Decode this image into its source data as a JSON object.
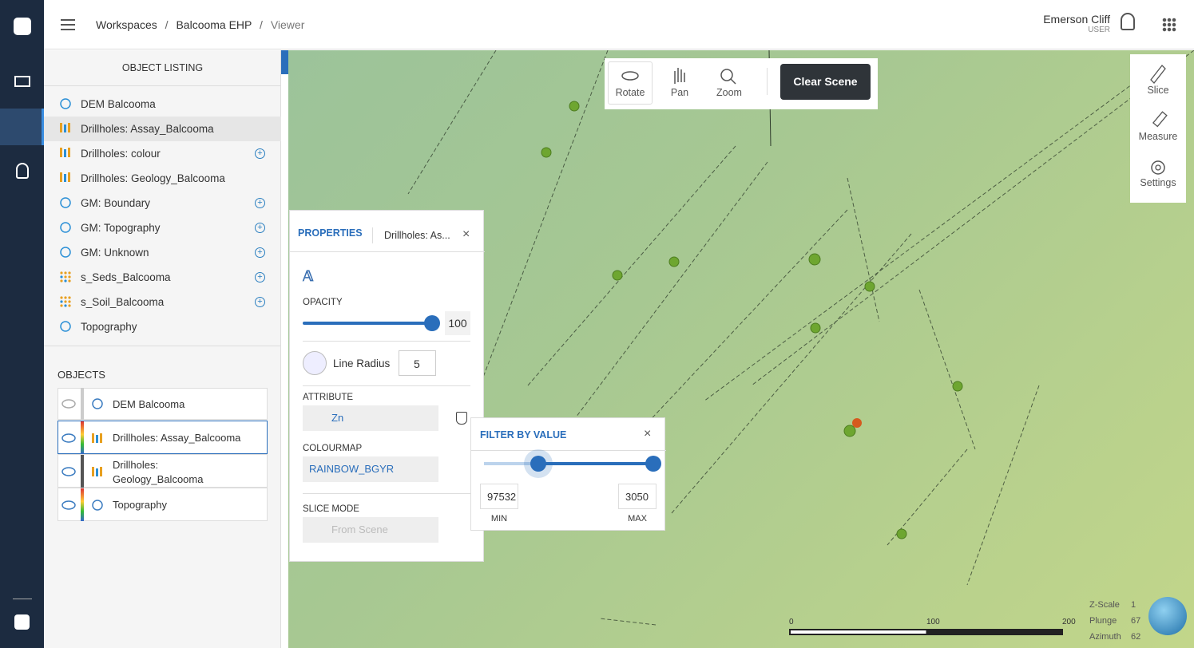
{
  "nav": {
    "breadcrumb": [
      "Workspaces",
      "Balcooma EHP",
      "Viewer"
    ],
    "separator": "/"
  },
  "user": {
    "name": "Emerson Cliff",
    "role": "USER"
  },
  "object_listing": {
    "title": "OBJECT LISTING",
    "items": [
      "DEM Balcooma",
      "Drillholes: Assay_Balcooma",
      "Drillholes: colour",
      "Drillholes: Geology_Balcooma",
      "GM: Boundary",
      "GM: Topography",
      "GM: Unknown",
      "s_Seds_Balcooma",
      "s_Soil_Balcooma",
      "Topography"
    ]
  },
  "objects": {
    "title": "OBJECTS",
    "items": [
      "DEM Balcooma",
      "Drillholes: Assay_Balcooma",
      "Drillholes: Geology_Balcooma",
      "Topography"
    ]
  },
  "toolbar": {
    "buttons": [
      "Rotate",
      "Pan",
      "Zoom"
    ],
    "clear": "Clear Scene"
  },
  "side_tools": [
    "Slice",
    "Measure",
    "Settings"
  ],
  "properties": {
    "tab": "PROPERTIES",
    "object": "Drillholes: As...",
    "opacity_label": "OPACITY",
    "opacity": 100,
    "line_radius_label": "Line Radius",
    "line_radius": 5,
    "attribute_label": "ATTRIBUTE",
    "attribute": "Zn",
    "colourmap_label": "COLOURMAP",
    "colourmap": "RAINBOW_BGYR",
    "slice_mode_label": "SLICE MODE",
    "slice_mode": "From Scene"
  },
  "filter": {
    "title": "FILTER BY VALUE",
    "min": "97532",
    "max": "3050",
    "min_label": "MIN",
    "max_label": "MAX"
  },
  "scale_bar": {
    "ticks": [
      0,
      100,
      200
    ]
  },
  "view_info": {
    "z_scale_label": "Z-Scale",
    "z_scale": 1,
    "plunge_label": "Plunge",
    "plunge": 67,
    "azimuth_label": "Azimuth",
    "azimuth": 62
  }
}
